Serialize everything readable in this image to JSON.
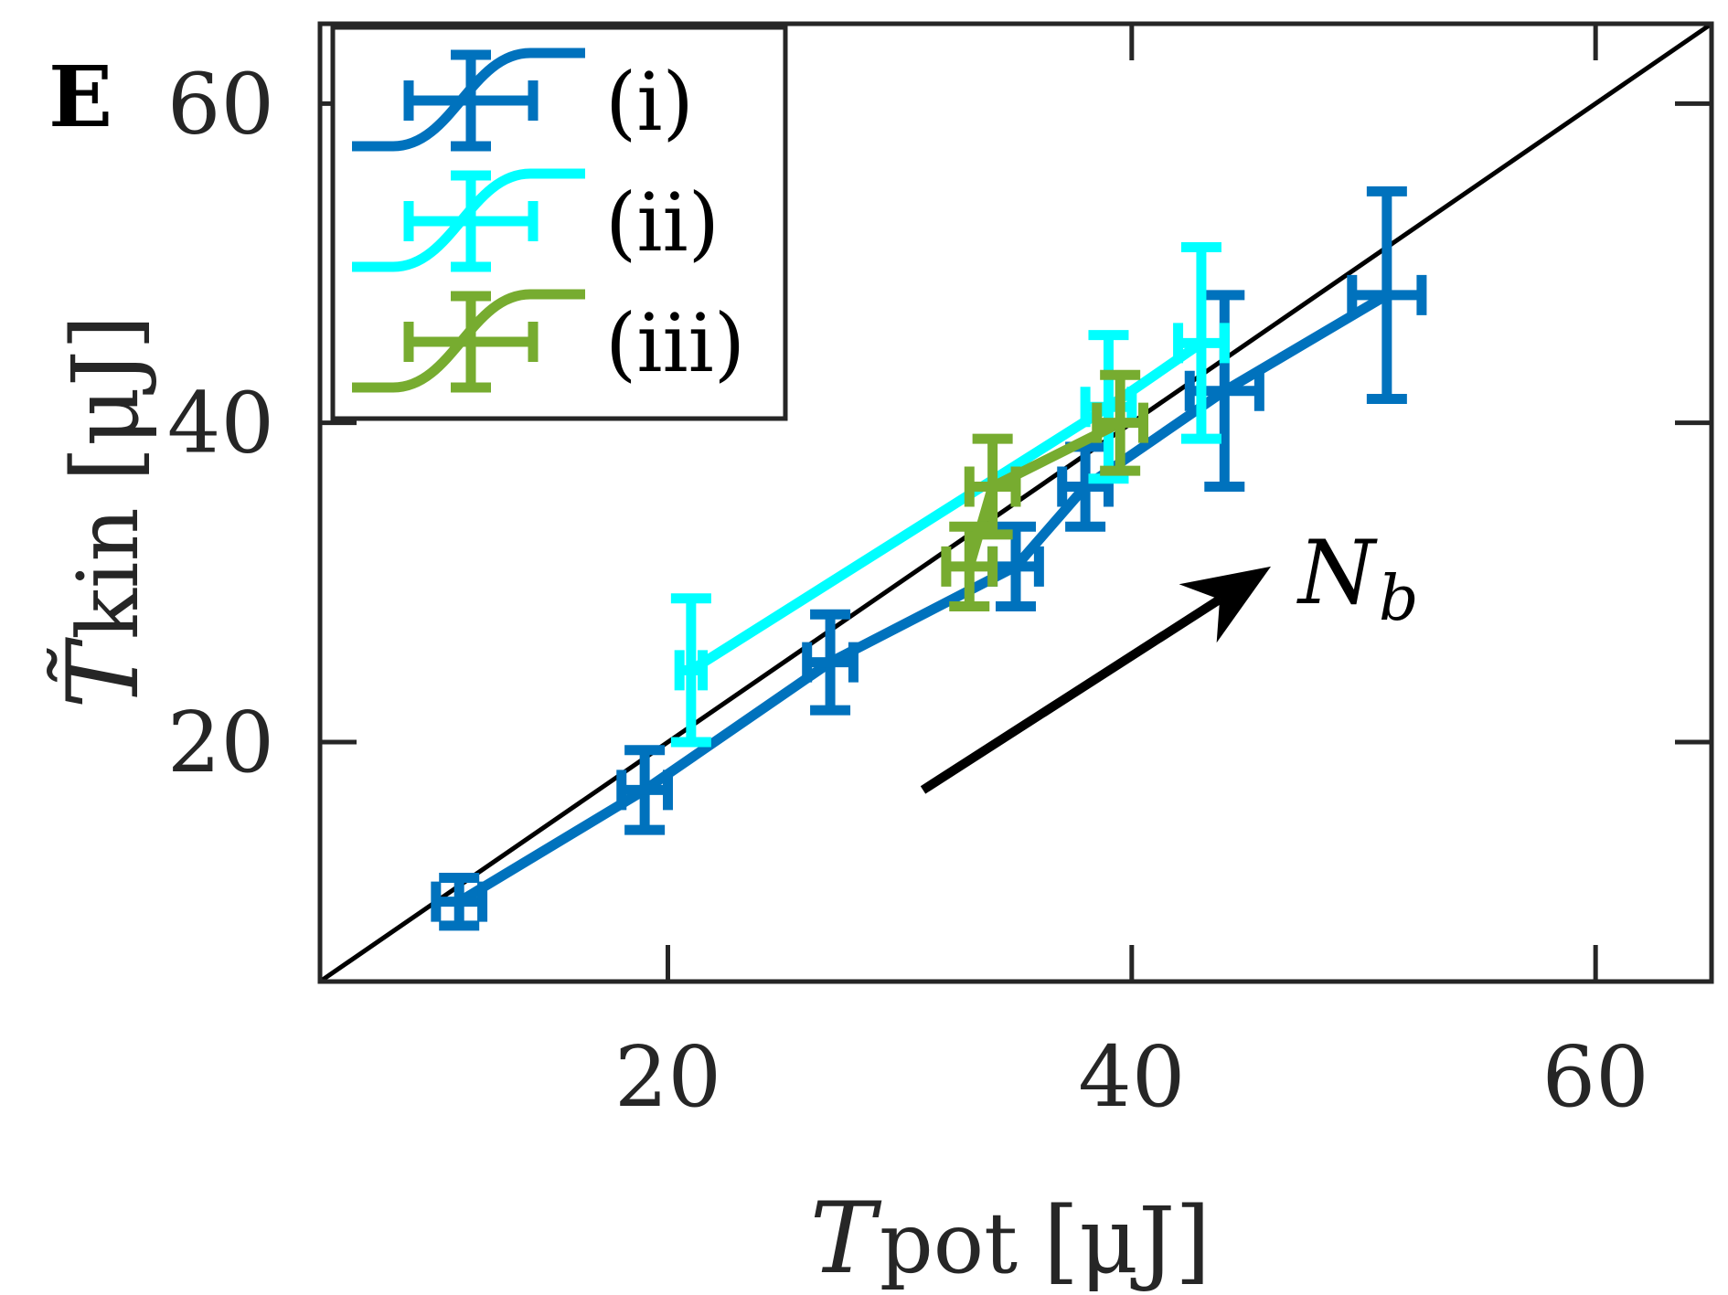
{
  "panel_label": "E",
  "chart_data": {
    "type": "line",
    "xlabel": {
      "symbol": "T",
      "sub": "pot",
      "unit": "[μJ]"
    },
    "ylabel": {
      "symbol": "T̃",
      "sub": "kin",
      "unit": "[μJ]"
    },
    "xlim": [
      5,
      65
    ],
    "ylim": [
      5,
      65
    ],
    "xticks": [
      20,
      40,
      60
    ],
    "yticks": [
      20,
      40,
      60
    ],
    "grid": false,
    "legend_position": "top-left",
    "reference_line": {
      "label": "y = x",
      "from": [
        5,
        5
      ],
      "to": [
        65,
        65
      ]
    },
    "annotation": {
      "text": "N",
      "sub": "b",
      "arrow_from": [
        31,
        17
      ],
      "arrow_to": [
        46,
        31
      ]
    },
    "series": [
      {
        "name": "(i)",
        "color": "#0072BD",
        "points": [
          {
            "x": 11,
            "y": 10,
            "xerr": 1,
            "yerr": 1.5
          },
          {
            "x": 19,
            "y": 17,
            "xerr": 1,
            "yerr": 2.5
          },
          {
            "x": 27,
            "y": 25,
            "xerr": 1,
            "yerr": 3
          },
          {
            "x": 35,
            "y": 31,
            "xerr": 1,
            "yerr": 2.5
          },
          {
            "x": 38,
            "y": 36,
            "xerr": 1,
            "yerr": 2.5
          },
          {
            "x": 44,
            "y": 42,
            "xerr": 1.5,
            "yerr": 6
          },
          {
            "x": 51,
            "y": 48,
            "xerr": 1.5,
            "yerr": 6.5
          }
        ]
      },
      {
        "name": "(ii)",
        "color": "#00FFFF",
        "points": [
          {
            "x": 21,
            "y": 24.5,
            "xerr": 0.5,
            "yerr": 4.5
          },
          {
            "x": 39,
            "y": 41,
            "xerr": 1,
            "yerr": 4.5
          },
          {
            "x": 43,
            "y": 45,
            "xerr": 1,
            "yerr": 6
          }
        ]
      },
      {
        "name": "(iii)",
        "color": "#77AC30",
        "points": [
          {
            "x": 33,
            "y": 31,
            "xerr": 1,
            "yerr": 2.5
          },
          {
            "x": 34,
            "y": 36,
            "xerr": 1,
            "yerr": 3
          },
          {
            "x": 39.5,
            "y": 40,
            "xerr": 1,
            "yerr": 3
          }
        ]
      }
    ]
  }
}
